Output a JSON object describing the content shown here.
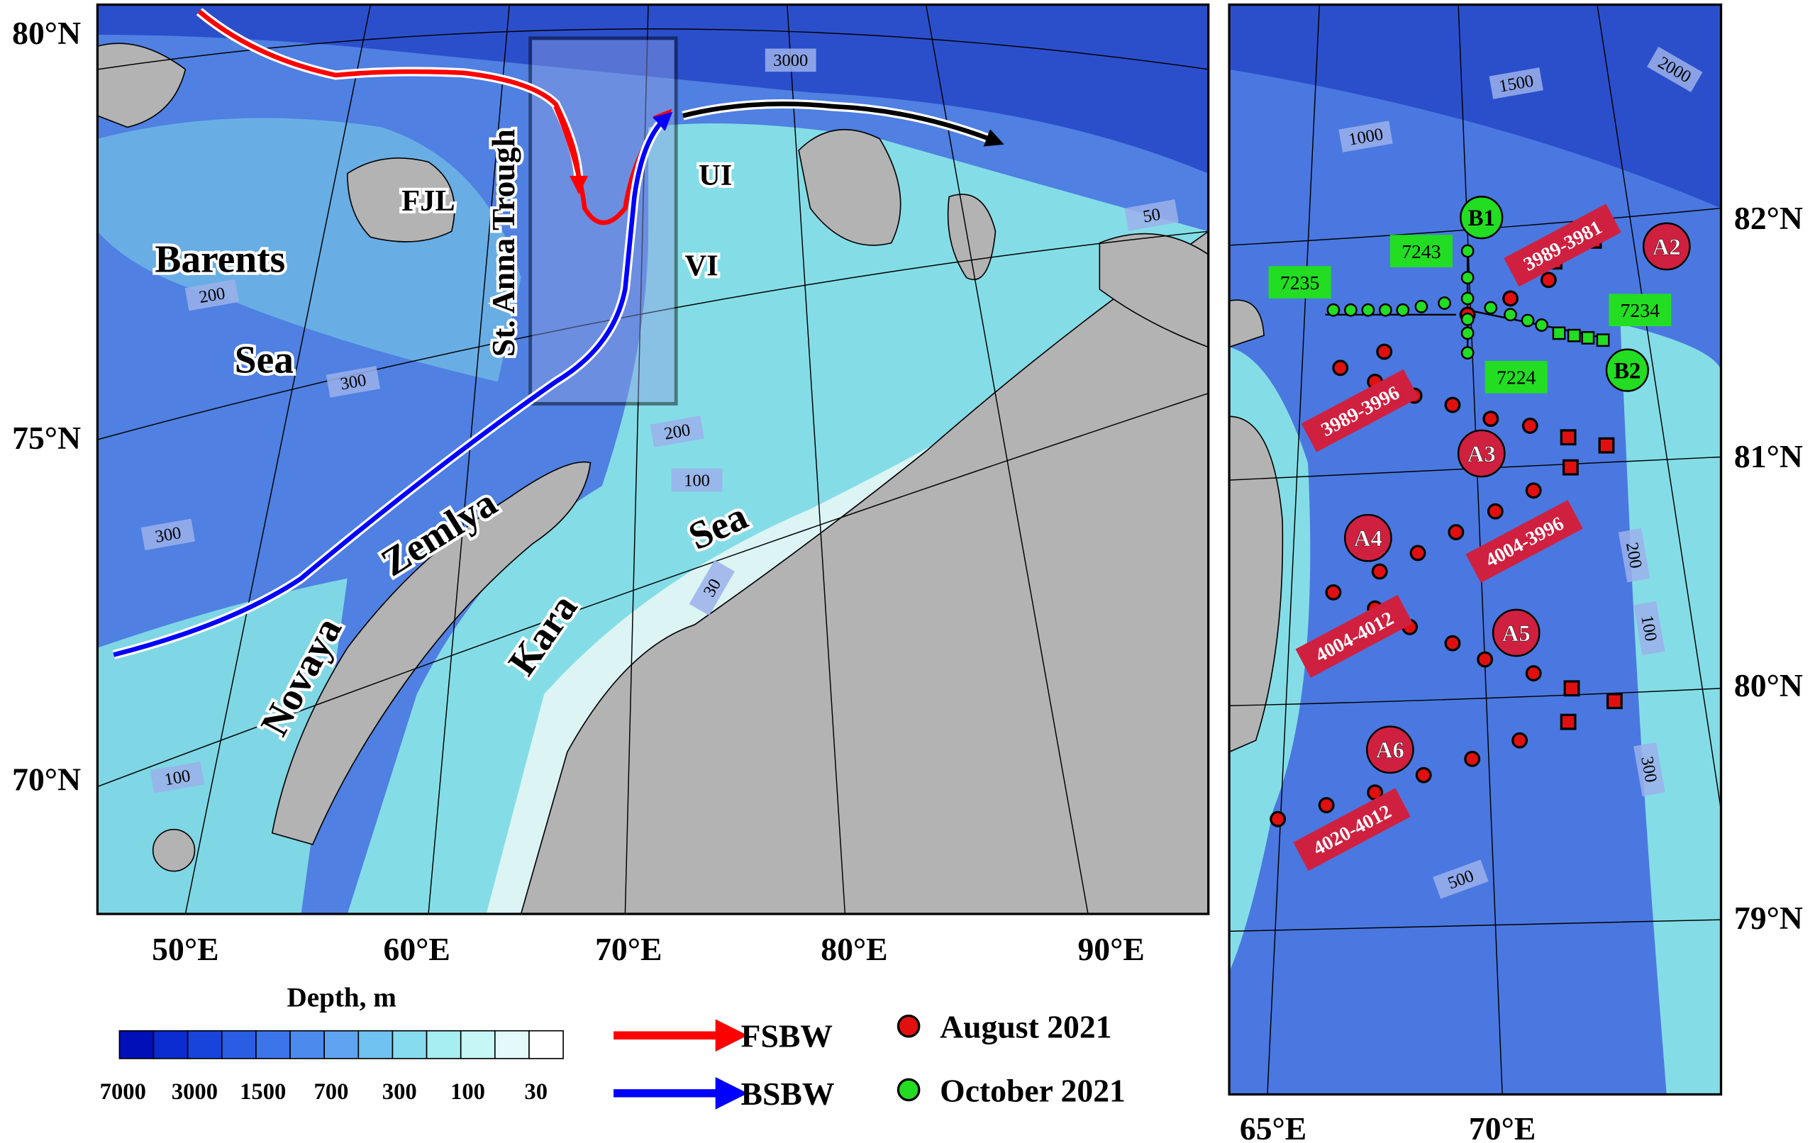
{
  "left_map": {
    "lat_labels": [
      "80°N",
      "75°N",
      "70°N"
    ],
    "lon_labels": [
      "50°E",
      "60°E",
      "70°E",
      "80°E",
      "90°E"
    ],
    "place_labels": [
      "Barents",
      "Sea",
      "FJL",
      "St. Anna Trough",
      "UI",
      "VI",
      "Novaya",
      "Zemlya",
      "Kara",
      "Sea"
    ],
    "contour_labels": [
      "3000",
      "200",
      "300",
      "300",
      "100",
      "200",
      "100",
      "30",
      "50"
    ]
  },
  "right_map": {
    "lat_labels": [
      "82°N",
      "81°N",
      "80°N",
      "79°N"
    ],
    "lon_labels": [
      "65°E",
      "70°E"
    ],
    "contour_labels": [
      "2000",
      "1500",
      "1000",
      "200",
      "100",
      "300",
      "500"
    ],
    "station_groups": [
      "A2",
      "A3",
      "A4",
      "A5",
      "A6",
      "B1",
      "B2"
    ],
    "section_labels": [
      "3989-3981",
      "3989-3996",
      "4004-3996",
      "4004-4012",
      "4020-4012"
    ],
    "transect_labels": [
      "7243",
      "7235",
      "7234",
      "7224"
    ]
  },
  "legend": {
    "colorbar_title": "Depth, m",
    "colorbar_labels": [
      "7000",
      "3000",
      "1500",
      "700",
      "300",
      "100",
      "30"
    ],
    "flows": [
      "FSBW",
      "BSBW"
    ],
    "markers": [
      "August 2021",
      "October 2021"
    ]
  }
}
